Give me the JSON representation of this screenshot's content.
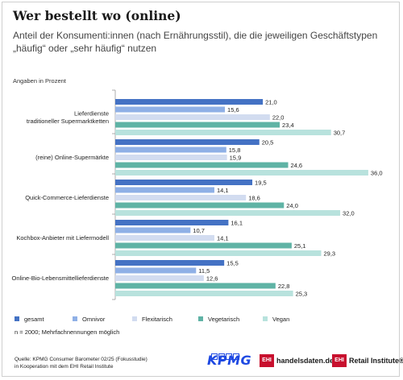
{
  "header": {
    "title": "Wer bestellt wo (online)",
    "subtitle": "Anteil der Konsumenti:innen (nach Ernährungsstil), die die jeweiligen Geschäftstypen „häufig“ oder „sehr häufig“ nutzen",
    "unit_note": "Angaben in Prozent"
  },
  "footer": {
    "sample_note": "n = 2000; Mehrfachnennungen möglich",
    "source_line1": "Quelle: KPMG Consumer Barometer 02/25 (Fokusstudie)",
    "source_line2": "in Kooperation mit dem EHI Retail Institute",
    "logo_kpmg": "KPMG",
    "logo_ehi1_badge": "EHI",
    "logo_ehi1_text": "handelsdaten.de",
    "logo_ehi2_badge": "EHI",
    "logo_ehi2_text": "Retail Institute®"
  },
  "chart_data": {
    "type": "bar",
    "orientation": "horizontal",
    "categories": [
      [
        "Lieferdienste",
        "traditioneller Supermarktketten"
      ],
      [
        "(reine) Online-Supermärkte"
      ],
      [
        "Quick-Commerce-Lieferdienste"
      ],
      [
        "Kochbox-Anbieter mit Liefermodell"
      ],
      [
        "Online-Bio-Lebensmittellieferdienste"
      ]
    ],
    "series": [
      {
        "name": "gesamt",
        "color": "#4472c4",
        "values": [
          21.0,
          20.5,
          19.5,
          16.1,
          15.5
        ]
      },
      {
        "name": "Omnivor",
        "color": "#8fb0e6",
        "values": [
          15.6,
          15.8,
          14.1,
          10.7,
          11.5
        ]
      },
      {
        "name": "Flexitarisch",
        "color": "#d2dcf0",
        "values": [
          22.0,
          15.9,
          18.6,
          14.1,
          12.6
        ]
      },
      {
        "name": "Vegetarisch",
        "color": "#5fb3a5",
        "values": [
          23.4,
          24.6,
          24.0,
          25.1,
          22.8
        ]
      },
      {
        "name": "Vegan",
        "color": "#b8e2dd",
        "values": [
          30.7,
          36.0,
          32.0,
          29.3,
          25.3
        ]
      }
    ],
    "xlim": [
      0,
      36
    ],
    "legend_position": "bottom-left",
    "grid": false
  }
}
